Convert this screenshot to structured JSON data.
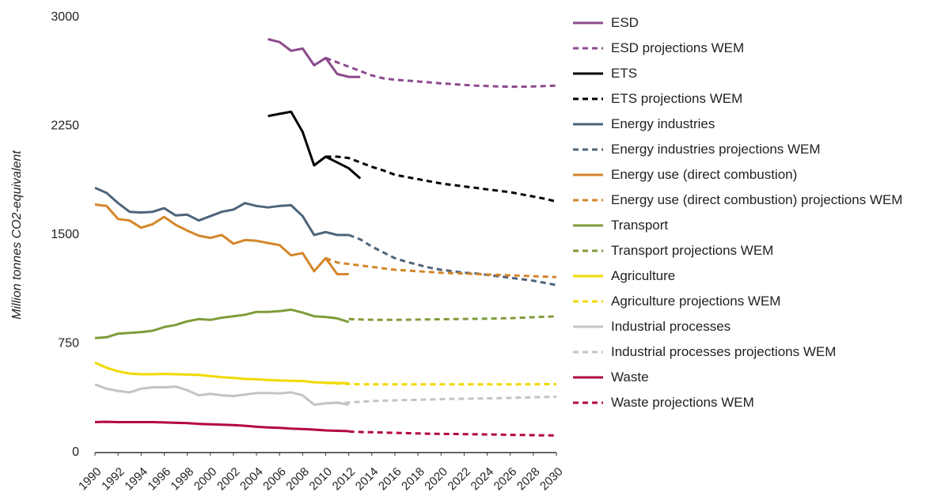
{
  "chart_data": {
    "type": "line",
    "y_label": "Million tonnes CO2-equivalent",
    "xlim": [
      1990,
      2030
    ],
    "xticks": [
      1990,
      1992,
      1994,
      1996,
      1998,
      2000,
      2002,
      2004,
      2006,
      2008,
      2010,
      2012,
      2014,
      2016,
      2018,
      2020,
      2022,
      2024,
      2026,
      2028,
      2030
    ],
    "ylim": [
      0,
      3000
    ],
    "yticks": [
      0,
      750,
      1500,
      2250,
      3000
    ],
    "grid": false,
    "series": [
      {
        "name": "ESD",
        "color": "#8c4a8c",
        "style": "solid",
        "x": [
          2005,
          2006,
          2007,
          2008,
          2009,
          2010,
          2011,
          2012,
          2013
        ],
        "values": [
          2850,
          2830,
          2770,
          2785,
          2670,
          2720,
          2610,
          2590,
          2590
        ]
      },
      {
        "name": "ESD projections WEM",
        "color": "#8c4a8c",
        "style": "dashed",
        "x": [
          2010,
          2011,
          2012,
          2013,
          2014,
          2015,
          2016,
          2017,
          2018,
          2019,
          2020,
          2021,
          2022,
          2023,
          2024,
          2025,
          2026,
          2027,
          2028,
          2029,
          2030
        ],
        "values": [
          2720,
          2690,
          2660,
          2630,
          2600,
          2580,
          2570,
          2565,
          2558,
          2552,
          2545,
          2540,
          2535,
          2530,
          2527,
          2524,
          2522,
          2522,
          2524,
          2527,
          2530
        ]
      },
      {
        "name": "ETS",
        "color": "#000000",
        "style": "solid",
        "x": [
          2005,
          2006,
          2007,
          2008,
          2009,
          2010,
          2011,
          2012,
          2013
        ],
        "values": [
          2320,
          2335,
          2350,
          2210,
          1980,
          2040,
          2000,
          1960,
          1890
        ]
      },
      {
        "name": "ETS projections WEM",
        "color": "#000000",
        "style": "dashed",
        "x": [
          2010,
          2011,
          2012,
          2013,
          2014,
          2015,
          2016,
          2017,
          2018,
          2019,
          2020,
          2021,
          2022,
          2023,
          2024,
          2025,
          2026,
          2027,
          2028,
          2029,
          2030
        ],
        "values": [
          2040,
          2040,
          2030,
          2000,
          1970,
          1945,
          1915,
          1900,
          1885,
          1870,
          1855,
          1845,
          1835,
          1825,
          1815,
          1805,
          1795,
          1780,
          1765,
          1750,
          1730
        ]
      },
      {
        "name": "Energy industries",
        "color": "#4f6479",
        "style": "solid",
        "x": [
          1990,
          1991,
          1992,
          1993,
          1994,
          1995,
          1996,
          1997,
          1998,
          1999,
          2000,
          2001,
          2002,
          2003,
          2004,
          2005,
          2006,
          2007,
          2008,
          2009,
          2010,
          2011,
          2012
        ],
        "values": [
          1825,
          1790,
          1720,
          1660,
          1655,
          1660,
          1685,
          1635,
          1640,
          1600,
          1630,
          1660,
          1675,
          1720,
          1700,
          1690,
          1700,
          1705,
          1630,
          1500,
          1520,
          1500,
          1500
        ]
      },
      {
        "name": "Energy industries projections WEM",
        "color": "#4f6479",
        "style": "dashed",
        "x": [
          2012,
          2013,
          2014,
          2015,
          2016,
          2017,
          2018,
          2019,
          2020,
          2021,
          2022,
          2023,
          2024,
          2025,
          2026,
          2027,
          2028,
          2029,
          2030
        ],
        "values": [
          1500,
          1470,
          1420,
          1380,
          1340,
          1315,
          1295,
          1275,
          1260,
          1250,
          1240,
          1235,
          1225,
          1215,
          1205,
          1195,
          1185,
          1170,
          1155
        ]
      },
      {
        "name": "Energy use (direct combustion)",
        "color": "#d4862a",
        "style": "solid",
        "x": [
          1990,
          1991,
          1992,
          1993,
          1994,
          1995,
          1996,
          1997,
          1998,
          1999,
          2000,
          2001,
          2002,
          2003,
          2004,
          2005,
          2006,
          2007,
          2008,
          2009,
          2010,
          2011,
          2012
        ],
        "values": [
          1710,
          1700,
          1610,
          1600,
          1550,
          1575,
          1625,
          1570,
          1530,
          1495,
          1480,
          1500,
          1440,
          1465,
          1460,
          1445,
          1430,
          1360,
          1375,
          1250,
          1340,
          1230,
          1230
        ]
      },
      {
        "name": "Energy use (direct combustion) projections WEM",
        "color": "#d4862a",
        "style": "dashed",
        "x": [
          2010,
          2011,
          2012,
          2013,
          2014,
          2015,
          2016,
          2017,
          2018,
          2019,
          2020,
          2021,
          2022,
          2023,
          2024,
          2025,
          2026,
          2027,
          2028,
          2029,
          2030
        ],
        "values": [
          1340,
          1310,
          1300,
          1290,
          1280,
          1270,
          1260,
          1255,
          1250,
          1245,
          1240,
          1237,
          1234,
          1231,
          1228,
          1225,
          1222,
          1219,
          1216,
          1213,
          1210
        ]
      },
      {
        "name": "Transport",
        "color": "#7f9b3a",
        "style": "solid",
        "x": [
          1990,
          1991,
          1992,
          1993,
          1994,
          1995,
          1996,
          1997,
          1998,
          1999,
          2000,
          2001,
          2002,
          2003,
          2004,
          2005,
          2006,
          2007,
          2008,
          2009,
          2010,
          2011,
          2012
        ],
        "values": [
          790,
          795,
          820,
          825,
          830,
          840,
          865,
          880,
          905,
          920,
          915,
          930,
          940,
          950,
          970,
          970,
          975,
          985,
          965,
          940,
          935,
          925,
          900
        ]
      },
      {
        "name": "Transport projections WEM",
        "color": "#7f9b3a",
        "style": "dashed",
        "x": [
          2012,
          2013,
          2014,
          2015,
          2016,
          2017,
          2018,
          2019,
          2020,
          2021,
          2022,
          2023,
          2024,
          2025,
          2026,
          2027,
          2028,
          2029,
          2030
        ],
        "values": [
          920,
          918,
          916,
          915,
          915,
          916,
          917,
          918,
          919,
          920,
          921,
          922,
          923,
          925,
          927,
          930,
          933,
          936,
          940
        ]
      },
      {
        "name": "Agriculture",
        "color": "#f2d900",
        "style": "solid",
        "x": [
          1990,
          1991,
          1992,
          1993,
          1994,
          1995,
          1996,
          1997,
          1998,
          1999,
          2000,
          2001,
          2002,
          2003,
          2004,
          2005,
          2006,
          2007,
          2008,
          2009,
          2010,
          2011,
          2012
        ],
        "values": [
          620,
          585,
          560,
          545,
          540,
          540,
          542,
          540,
          538,
          535,
          528,
          520,
          515,
          508,
          505,
          500,
          497,
          495,
          493,
          485,
          482,
          480,
          478
        ]
      },
      {
        "name": "Agriculture projections WEM",
        "color": "#f2d900",
        "style": "dashed",
        "x": [
          2010,
          2011,
          2012,
          2013,
          2014,
          2015,
          2016,
          2017,
          2018,
          2019,
          2020,
          2021,
          2022,
          2023,
          2024,
          2025,
          2026,
          2027,
          2028,
          2029,
          2030
        ],
        "values": [
          480,
          476,
          473,
          471,
          470,
          470,
          470,
          470,
          470,
          470,
          470,
          470,
          470,
          470,
          470,
          470,
          470,
          471,
          471,
          472,
          472
        ]
      },
      {
        "name": "Industrial processes",
        "color": "#c4c4c4",
        "style": "solid",
        "x": [
          1990,
          1991,
          1992,
          1993,
          1994,
          1995,
          1996,
          1997,
          1998,
          1999,
          2000,
          2001,
          2002,
          2003,
          2004,
          2005,
          2006,
          2007,
          2008,
          2009,
          2010,
          2011,
          2012
        ],
        "values": [
          470,
          440,
          425,
          415,
          440,
          450,
          450,
          455,
          430,
          395,
          405,
          395,
          390,
          400,
          410,
          410,
          408,
          415,
          395,
          330,
          340,
          345,
          330
        ]
      },
      {
        "name": "Industrial processes projections WEM",
        "color": "#c4c4c4",
        "style": "dashed",
        "x": [
          2010,
          2011,
          2012,
          2013,
          2014,
          2015,
          2016,
          2017,
          2018,
          2019,
          2020,
          2021,
          2022,
          2023,
          2024,
          2025,
          2026,
          2027,
          2028,
          2029,
          2030
        ],
        "values": [
          340,
          342,
          345,
          350,
          355,
          358,
          360,
          362,
          364,
          366,
          368,
          370,
          371,
          372,
          374,
          375,
          377,
          379,
          381,
          383,
          385
        ]
      },
      {
        "name": "Waste",
        "color": "#b3073f",
        "style": "solid",
        "x": [
          1990,
          1991,
          1992,
          1993,
          1994,
          1995,
          1996,
          1997,
          1998,
          1999,
          2000,
          2001,
          2002,
          2003,
          2004,
          2005,
          2006,
          2007,
          2008,
          2009,
          2010,
          2011,
          2012
        ],
        "values": [
          210,
          212,
          210,
          210,
          210,
          210,
          208,
          205,
          203,
          198,
          195,
          192,
          190,
          185,
          178,
          173,
          170,
          165,
          162,
          158,
          153,
          150,
          148
        ]
      },
      {
        "name": "Waste projections WEM",
        "color": "#b3073f",
        "style": "dashed",
        "x": [
          2012,
          2013,
          2014,
          2015,
          2016,
          2017,
          2018,
          2019,
          2020,
          2021,
          2022,
          2023,
          2024,
          2025,
          2026,
          2027,
          2028,
          2029,
          2030
        ],
        "values": [
          145,
          142,
          140,
          138,
          136,
          134,
          132,
          130,
          129,
          128,
          127,
          126,
          125,
          124,
          122,
          121,
          120,
          119,
          118
        ]
      }
    ]
  }
}
